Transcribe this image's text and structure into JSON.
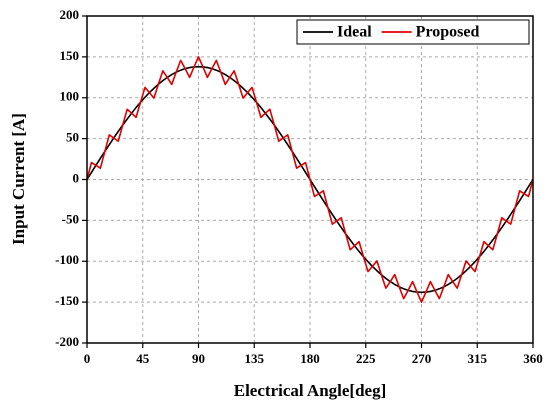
{
  "chart_data": {
    "type": "line",
    "xlabel": "Electrical Angle[deg]",
    "ylabel": "Input Current [A]",
    "xlim": [
      0,
      360
    ],
    "ylim": [
      -200,
      200
    ],
    "xticks": [
      0,
      45,
      90,
      135,
      180,
      225,
      270,
      315,
      360
    ],
    "yticks": [
      -200,
      -150,
      -100,
      -50,
      0,
      50,
      100,
      150,
      200
    ],
    "grid": true,
    "legend": "upper right",
    "x": [
      0,
      3.6,
      7.2,
      10.8,
      14.4,
      18,
      21.6,
      25.2,
      28.8,
      32.4,
      36,
      39.6,
      43.2,
      46.8,
      50.4,
      54,
      57.6,
      61.2,
      64.8,
      68.4,
      72,
      75.6,
      79.2,
      82.8,
      86.4,
      90,
      93.6,
      97.2,
      100.8,
      104.4,
      108,
      111.6,
      115.2,
      118.8,
      122.4,
      126,
      129.6,
      133.2,
      136.8,
      140.4,
      144,
      147.6,
      151.2,
      154.8,
      158.4,
      162,
      165.6,
      169.2,
      172.8,
      176.4,
      180,
      183.6,
      187.2,
      190.8,
      194.4,
      198,
      201.6,
      205.2,
      208.8,
      212.4,
      216,
      219.6,
      223.2,
      226.8,
      230.4,
      234,
      237.6,
      241.2,
      244.8,
      248.4,
      252,
      255.6,
      259.2,
      262.8,
      266.4,
      270,
      273.6,
      277.2,
      280.8,
      284.4,
      288,
      291.6,
      295.2,
      298.8,
      302.4,
      306,
      309.6,
      313.2,
      316.8,
      320.4,
      324,
      327.6,
      331.2,
      334.8,
      338.4,
      342,
      345.6,
      349.2,
      352.8,
      356.4,
      360
    ],
    "series": [
      {
        "name": "Ideal",
        "color": "#000000",
        "values": [
          0,
          8.7,
          17.3,
          25.9,
          34.3,
          42.6,
          50.8,
          58.8,
          66.5,
          73.9,
          81.1,
          88.0,
          94.5,
          100.6,
          106.3,
          111.6,
          116.5,
          120.9,
          124.9,
          128.3,
          131.3,
          133.7,
          135.6,
          136.9,
          137.7,
          138,
          137.7,
          136.9,
          135.6,
          133.7,
          131.3,
          128.3,
          124.9,
          120.9,
          116.5,
          111.6,
          106.3,
          100.6,
          94.5,
          88.0,
          81.1,
          73.9,
          66.5,
          58.8,
          50.8,
          42.6,
          34.3,
          25.9,
          17.3,
          8.7,
          0,
          -8.7,
          -17.3,
          -25.9,
          -34.3,
          -42.6,
          -50.8,
          -58.8,
          -66.5,
          -73.9,
          -81.1,
          -88.0,
          -94.5,
          -100.6,
          -106.3,
          -111.6,
          -116.5,
          -120.9,
          -124.9,
          -128.3,
          -131.3,
          -133.7,
          -135.6,
          -136.9,
          -137.7,
          -138,
          -137.7,
          -136.9,
          -135.6,
          -133.7,
          -131.3,
          -128.3,
          -124.9,
          -120.9,
          -116.5,
          -111.6,
          -106.3,
          -100.6,
          -94.5,
          -88.0,
          -81.1,
          -73.9,
          -66.5,
          -58.8,
          -50.8,
          -42.6,
          -34.3,
          -25.9,
          -17.3,
          -8.7,
          0
        ]
      },
      {
        "name": "Proposed",
        "color": "#e00000",
        "values": [
          0,
          20.7,
          17.3,
          13.9,
          34.3,
          54.6,
          50.8,
          46.8,
          66.5,
          85.9,
          81.1,
          76.0,
          94.5,
          112.6,
          106.3,
          99.6,
          116.5,
          132.9,
          124.9,
          116.3,
          131.3,
          145.7,
          135.6,
          124.9,
          137.7,
          150,
          137.7,
          124.9,
          135.6,
          145.7,
          131.3,
          116.3,
          124.9,
          132.9,
          116.5,
          99.6,
          106.3,
          112.6,
          94.5,
          76.0,
          81.1,
          85.9,
          66.5,
          46.8,
          50.8,
          54.6,
          34.3,
          13.9,
          17.3,
          20.7,
          0,
          -20.7,
          -17.3,
          -13.9,
          -34.3,
          -54.6,
          -50.8,
          -46.8,
          -66.5,
          -85.9,
          -81.1,
          -76.0,
          -94.5,
          -112.6,
          -106.3,
          -99.6,
          -116.5,
          -132.9,
          -124.9,
          -116.3,
          -131.3,
          -145.7,
          -135.6,
          -124.9,
          -137.7,
          -150,
          -137.7,
          -124.9,
          -135.6,
          -145.7,
          -131.3,
          -116.3,
          -124.9,
          -132.9,
          -116.5,
          -99.6,
          -106.3,
          -112.6,
          -94.5,
          -76.0,
          -81.1,
          -85.9,
          -66.5,
          -46.8,
          -50.8,
          -54.6,
          -34.3,
          -13.9,
          -17.3,
          -20.7,
          0
        ]
      }
    ]
  }
}
